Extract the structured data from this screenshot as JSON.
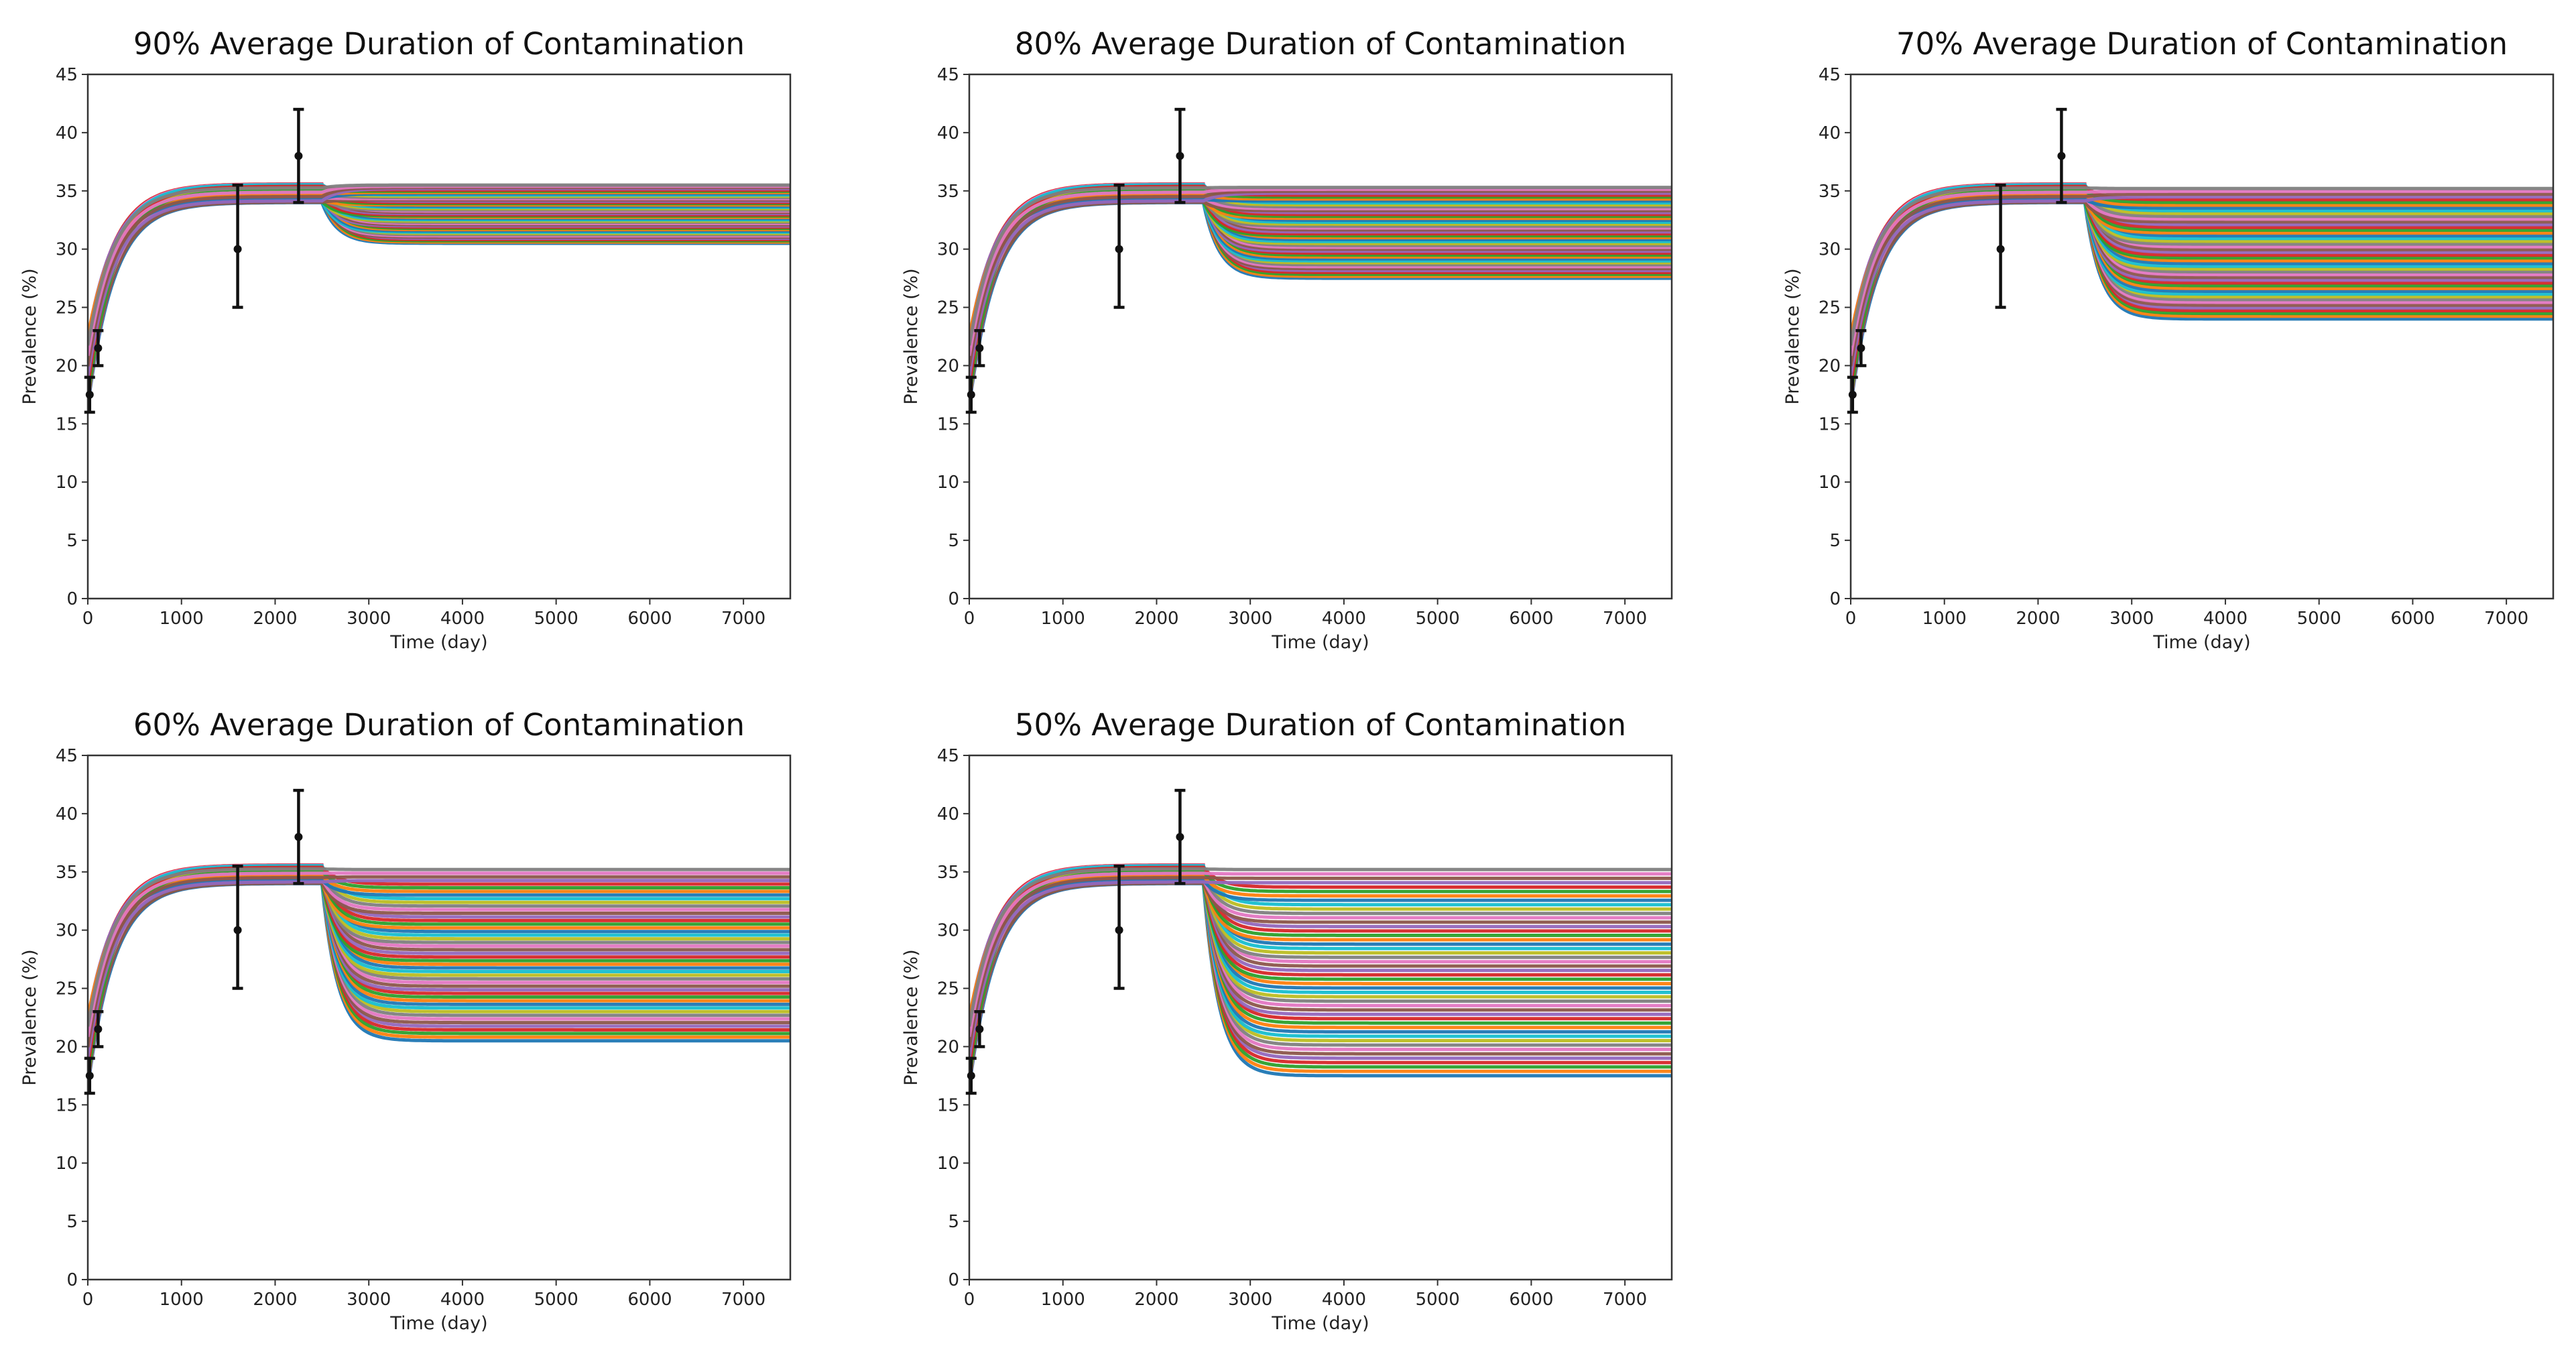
{
  "chart_data": [
    {
      "type": "line",
      "title": "90% Average Duration of Contamination",
      "xlabel": "Time (day)",
      "ylabel": "Prevalence (%)",
      "xlim": [
        0,
        7500
      ],
      "ylim": [
        0,
        45
      ],
      "xticks": [
        0,
        1000,
        2000,
        3000,
        4000,
        5000,
        6000,
        7000
      ],
      "yticks": [
        0,
        5,
        10,
        15,
        20,
        25,
        30,
        35,
        40,
        45
      ],
      "model": {
        "y0_min": 16.5,
        "y0_max": 22.5,
        "plateau_min": 34.0,
        "plateau_max": 35.6,
        "rise_k": 0.0035,
        "intervention_day": 2500,
        "decay_k": 0.006
      },
      "series_count": 48,
      "final_range": [
        30.5,
        35.5
      ],
      "observations": [
        {
          "x": 20,
          "y": 17.5,
          "lo": 16.0,
          "hi": 19.0
        },
        {
          "x": 110,
          "y": 21.5,
          "lo": 20.0,
          "hi": 23.0
        },
        {
          "x": 1600,
          "y": 30.0,
          "lo": 25.0,
          "hi": 35.5
        },
        {
          "x": 2250,
          "y": 38.0,
          "lo": 34.0,
          "hi": 42.0
        }
      ]
    },
    {
      "type": "line",
      "title": "80% Average Duration of Contamination",
      "xlabel": "Time (day)",
      "ylabel": "Prevalence (%)",
      "xlim": [
        0,
        7500
      ],
      "ylim": [
        0,
        45
      ],
      "xticks": [
        0,
        1000,
        2000,
        3000,
        4000,
        5000,
        6000,
        7000
      ],
      "yticks": [
        0,
        5,
        10,
        15,
        20,
        25,
        30,
        35,
        40,
        45
      ],
      "model": {
        "y0_min": 16.5,
        "y0_max": 22.5,
        "plateau_min": 34.0,
        "plateau_max": 35.6,
        "rise_k": 0.0035,
        "intervention_day": 2500,
        "decay_k": 0.006
      },
      "series_count": 48,
      "final_range": [
        27.5,
        35.3
      ],
      "observations": [
        {
          "x": 20,
          "y": 17.5,
          "lo": 16.0,
          "hi": 19.0
        },
        {
          "x": 110,
          "y": 21.5,
          "lo": 20.0,
          "hi": 23.0
        },
        {
          "x": 1600,
          "y": 30.0,
          "lo": 25.0,
          "hi": 35.5
        },
        {
          "x": 2250,
          "y": 38.0,
          "lo": 34.0,
          "hi": 42.0
        }
      ]
    },
    {
      "type": "line",
      "title": "70% Average Duration of Contamination",
      "xlabel": "Time (day)",
      "ylabel": "Prevalence (%)",
      "xlim": [
        0,
        7500
      ],
      "ylim": [
        0,
        45
      ],
      "xticks": [
        0,
        1000,
        2000,
        3000,
        4000,
        5000,
        6000,
        7000
      ],
      "yticks": [
        0,
        5,
        10,
        15,
        20,
        25,
        30,
        35,
        40,
        45
      ],
      "model": {
        "y0_min": 16.5,
        "y0_max": 22.5,
        "plateau_min": 34.0,
        "plateau_max": 35.6,
        "rise_k": 0.0035,
        "intervention_day": 2500,
        "decay_k": 0.006
      },
      "series_count": 48,
      "final_range": [
        24.0,
        35.2
      ],
      "observations": [
        {
          "x": 20,
          "y": 17.5,
          "lo": 16.0,
          "hi": 19.0
        },
        {
          "x": 110,
          "y": 21.5,
          "lo": 20.0,
          "hi": 23.0
        },
        {
          "x": 1600,
          "y": 30.0,
          "lo": 25.0,
          "hi": 35.5
        },
        {
          "x": 2250,
          "y": 38.0,
          "lo": 34.0,
          "hi": 42.0
        }
      ]
    },
    {
      "type": "line",
      "title": "60% Average Duration of Contamination",
      "xlabel": "Time (day)",
      "ylabel": "Prevalence (%)",
      "xlim": [
        0,
        7500
      ],
      "ylim": [
        0,
        45
      ],
      "xticks": [
        0,
        1000,
        2000,
        3000,
        4000,
        5000,
        6000,
        7000
      ],
      "yticks": [
        0,
        5,
        10,
        15,
        20,
        25,
        30,
        35,
        40,
        45
      ],
      "model": {
        "y0_min": 16.5,
        "y0_max": 22.5,
        "plateau_min": 34.0,
        "plateau_max": 35.6,
        "rise_k": 0.0035,
        "intervention_day": 2500,
        "decay_k": 0.006
      },
      "series_count": 48,
      "final_range": [
        20.5,
        35.2
      ],
      "observations": [
        {
          "x": 20,
          "y": 17.5,
          "lo": 16.0,
          "hi": 19.0
        },
        {
          "x": 110,
          "y": 21.5,
          "lo": 20.0,
          "hi": 23.0
        },
        {
          "x": 1600,
          "y": 30.0,
          "lo": 25.0,
          "hi": 35.5
        },
        {
          "x": 2250,
          "y": 38.0,
          "lo": 34.0,
          "hi": 42.0
        }
      ]
    },
    {
      "type": "line",
      "title": "50% Average Duration of Contamination",
      "xlabel": "Time (day)",
      "ylabel": "Prevalence (%)",
      "xlim": [
        0,
        7500
      ],
      "ylim": [
        0,
        45
      ],
      "xticks": [
        0,
        1000,
        2000,
        3000,
        4000,
        5000,
        6000,
        7000
      ],
      "yticks": [
        0,
        5,
        10,
        15,
        20,
        25,
        30,
        35,
        40,
        45
      ],
      "model": {
        "y0_min": 16.5,
        "y0_max": 22.5,
        "plateau_min": 34.0,
        "plateau_max": 35.6,
        "rise_k": 0.0035,
        "intervention_day": 2500,
        "decay_k": 0.006
      },
      "series_count": 48,
      "final_range": [
        17.5,
        35.2
      ],
      "observations": [
        {
          "x": 20,
          "y": 17.5,
          "lo": 16.0,
          "hi": 19.0
        },
        {
          "x": 110,
          "y": 21.5,
          "lo": 20.0,
          "hi": 23.0
        },
        {
          "x": 1600,
          "y": 30.0,
          "lo": 25.0,
          "hi": 35.5
        },
        {
          "x": 2250,
          "y": 38.0,
          "lo": 34.0,
          "hi": 42.0
        }
      ]
    }
  ],
  "palette": [
    "#1f77b4",
    "#ff7f0e",
    "#2ca02c",
    "#d62728",
    "#9467bd",
    "#8c564b",
    "#e377c2",
    "#7f7f7f",
    "#bcbd22",
    "#17becf"
  ]
}
